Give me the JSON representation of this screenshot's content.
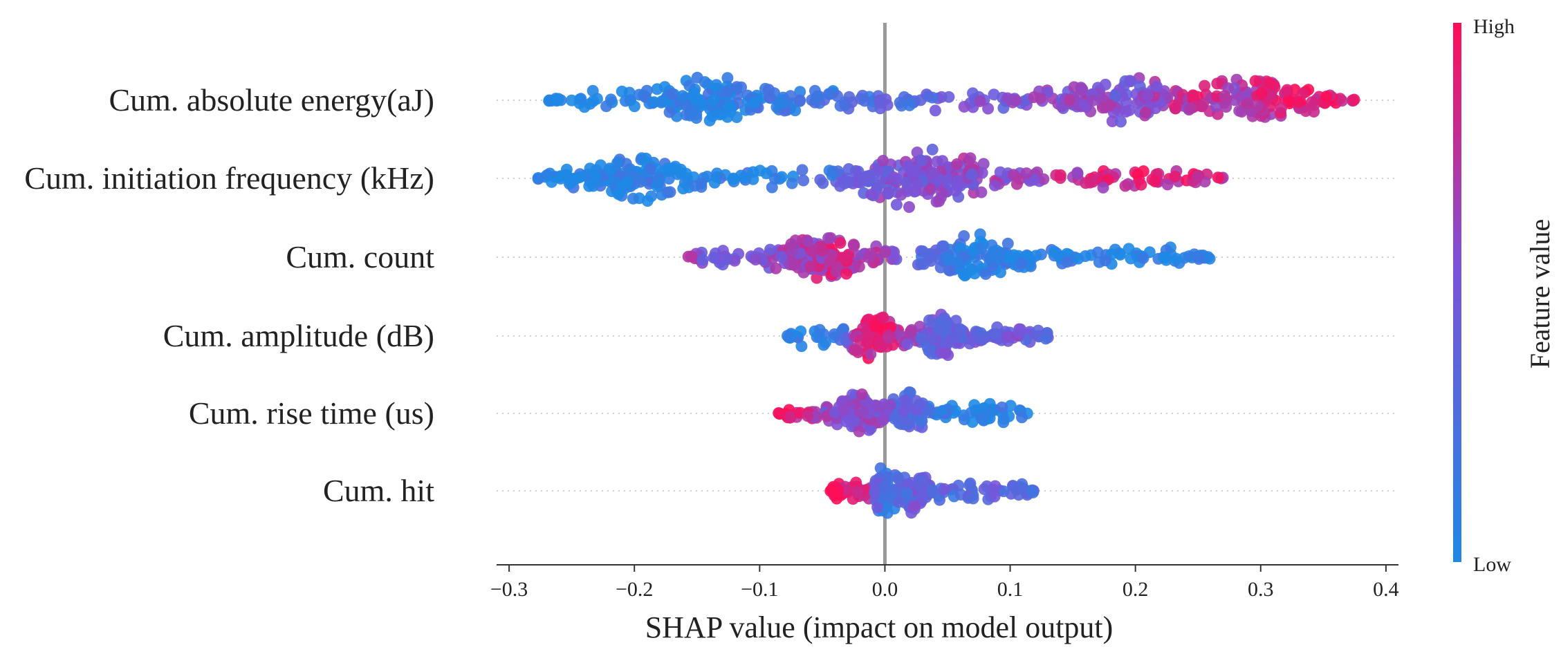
{
  "chart_data": {
    "type": "scatter",
    "subtype": "beeswarm",
    "title": "",
    "xlabel": "SHAP value (impact on model output)",
    "ylabel": "",
    "xlim": [
      -0.31,
      0.41
    ],
    "xticks": [
      -0.3,
      -0.2,
      -0.1,
      0.0,
      0.1,
      0.2,
      0.3,
      0.4
    ],
    "xtick_labels": [
      "−0.3",
      "−0.2",
      "−0.1",
      "0.0",
      "0.1",
      "0.2",
      "0.3",
      "0.4"
    ],
    "grid": false,
    "zero_line": true,
    "features": [
      {
        "name": "Cum. absolute energy(aJ)",
        "range": [
          -0.27,
          0.375
        ],
        "peaks": [
          -0.14,
          0.19,
          0.29
        ],
        "points": [
          {
            "x": -0.27,
            "v": 0.05
          },
          {
            "x": -0.24,
            "v": 0.06
          },
          {
            "x": -0.21,
            "v": 0.05
          },
          {
            "x": -0.19,
            "v": 0.06
          },
          {
            "x": -0.17,
            "v": 0.05
          },
          {
            "x": -0.155,
            "v": 0.04
          },
          {
            "x": -0.14,
            "v": 0.05
          },
          {
            "x": -0.125,
            "v": 0.06
          },
          {
            "x": -0.1,
            "v": 0.1
          },
          {
            "x": -0.07,
            "v": 0.12
          },
          {
            "x": -0.04,
            "v": 0.2
          },
          {
            "x": 0.0,
            "v": 0.3
          },
          {
            "x": 0.04,
            "v": 0.35
          },
          {
            "x": 0.08,
            "v": 0.5
          },
          {
            "x": 0.11,
            "v": 0.55
          },
          {
            "x": 0.14,
            "v": 0.55
          },
          {
            "x": 0.17,
            "v": 0.6
          },
          {
            "x": 0.19,
            "v": 0.5
          },
          {
            "x": 0.22,
            "v": 0.65
          },
          {
            "x": 0.25,
            "v": 0.8
          },
          {
            "x": 0.27,
            "v": 0.7
          },
          {
            "x": 0.29,
            "v": 0.75
          },
          {
            "x": 0.32,
            "v": 0.9
          },
          {
            "x": 0.35,
            "v": 0.95
          },
          {
            "x": 0.375,
            "v": 0.95
          }
        ]
      },
      {
        "name": "Cum. initiation frequency (kHz)",
        "range": [
          -0.28,
          0.27
        ],
        "peaks": [
          -0.2,
          0.01,
          0.05
        ],
        "points": [
          {
            "x": -0.28,
            "v": 0.04
          },
          {
            "x": -0.25,
            "v": 0.05
          },
          {
            "x": -0.22,
            "v": 0.05
          },
          {
            "x": -0.2,
            "v": 0.06
          },
          {
            "x": -0.17,
            "v": 0.05
          },
          {
            "x": -0.14,
            "v": 0.06
          },
          {
            "x": -0.1,
            "v": 0.08
          },
          {
            "x": -0.07,
            "v": 0.1
          },
          {
            "x": -0.03,
            "v": 0.35
          },
          {
            "x": -0.01,
            "v": 0.5
          },
          {
            "x": 0.01,
            "v": 0.55
          },
          {
            "x": 0.03,
            "v": 0.5
          },
          {
            "x": 0.05,
            "v": 0.6
          },
          {
            "x": 0.08,
            "v": 0.6
          },
          {
            "x": 0.11,
            "v": 0.65
          },
          {
            "x": 0.14,
            "v": 0.75
          },
          {
            "x": 0.17,
            "v": 0.8
          },
          {
            "x": 0.2,
            "v": 0.85
          },
          {
            "x": 0.23,
            "v": 0.85
          },
          {
            "x": 0.25,
            "v": 0.8
          },
          {
            "x": 0.27,
            "v": 0.85
          }
        ]
      },
      {
        "name": "Cum. count",
        "range": [
          -0.16,
          0.26
        ],
        "peaks": [
          -0.05,
          0.07
        ],
        "points": [
          {
            "x": -0.16,
            "v": 0.6
          },
          {
            "x": -0.14,
            "v": 0.55
          },
          {
            "x": -0.12,
            "v": 0.5
          },
          {
            "x": -0.1,
            "v": 0.6
          },
          {
            "x": -0.08,
            "v": 0.6
          },
          {
            "x": -0.06,
            "v": 0.7
          },
          {
            "x": -0.04,
            "v": 0.8
          },
          {
            "x": -0.02,
            "v": 0.75
          },
          {
            "x": 0.0,
            "v": 0.7
          },
          {
            "x": 0.02,
            "v": 0.4
          },
          {
            "x": 0.05,
            "v": 0.15
          },
          {
            "x": 0.07,
            "v": 0.05
          },
          {
            "x": 0.1,
            "v": 0.05
          },
          {
            "x": 0.13,
            "v": 0.06
          },
          {
            "x": 0.16,
            "v": 0.05
          },
          {
            "x": 0.19,
            "v": 0.05
          },
          {
            "x": 0.22,
            "v": 0.04
          },
          {
            "x": 0.26,
            "v": 0.04
          }
        ]
      },
      {
        "name": "Cum. amplitude (dB)",
        "range": [
          -0.08,
          0.135
        ],
        "peaks": [
          -0.01,
          0.045
        ],
        "points": [
          {
            "x": -0.08,
            "v": 0.05
          },
          {
            "x": -0.06,
            "v": 0.06
          },
          {
            "x": -0.04,
            "v": 0.1
          },
          {
            "x": -0.02,
            "v": 0.85
          },
          {
            "x": 0.0,
            "v": 0.9
          },
          {
            "x": 0.015,
            "v": 0.7
          },
          {
            "x": 0.03,
            "v": 0.45
          },
          {
            "x": 0.045,
            "v": 0.4
          },
          {
            "x": 0.06,
            "v": 0.45
          },
          {
            "x": 0.08,
            "v": 0.4
          },
          {
            "x": 0.1,
            "v": 0.5
          },
          {
            "x": 0.12,
            "v": 0.45
          },
          {
            "x": 0.135,
            "v": 0.4
          }
        ]
      },
      {
        "name": "Cum. rise time (us)",
        "range": [
          -0.085,
          0.115
        ],
        "peaks": [
          -0.02,
          0.02
        ],
        "points": [
          {
            "x": -0.085,
            "v": 0.95
          },
          {
            "x": -0.07,
            "v": 0.9
          },
          {
            "x": -0.05,
            "v": 0.6
          },
          {
            "x": -0.03,
            "v": 0.65
          },
          {
            "x": -0.01,
            "v": 0.55
          },
          {
            "x": 0.01,
            "v": 0.4
          },
          {
            "x": 0.03,
            "v": 0.3
          },
          {
            "x": 0.05,
            "v": 0.15
          },
          {
            "x": 0.07,
            "v": 0.06
          },
          {
            "x": 0.09,
            "v": 0.05
          },
          {
            "x": 0.115,
            "v": 0.05
          }
        ]
      },
      {
        "name": "Cum. hit",
        "range": [
          -0.045,
          0.12
        ],
        "peaks": [
          0.0,
          0.025
        ],
        "points": [
          {
            "x": -0.045,
            "v": 0.95
          },
          {
            "x": -0.03,
            "v": 0.9
          },
          {
            "x": -0.015,
            "v": 0.85
          },
          {
            "x": 0.0,
            "v": 0.1
          },
          {
            "x": 0.015,
            "v": 0.35
          },
          {
            "x": 0.025,
            "v": 0.45
          },
          {
            "x": 0.04,
            "v": 0.4
          },
          {
            "x": 0.06,
            "v": 0.2
          },
          {
            "x": 0.08,
            "v": 0.4
          },
          {
            "x": 0.1,
            "v": 0.35
          },
          {
            "x": 0.12,
            "v": 0.3
          }
        ]
      }
    ],
    "colorbar": {
      "label": "Feature value",
      "high_label": "High",
      "low_label": "Low",
      "low_color": "#1E88E5",
      "mid_color": "#7C52D8",
      "high_color": "#FF0D57",
      "placement": "right"
    },
    "colors": {
      "zero_line": "#999999",
      "axis": "#333333",
      "guide": "#cccccc"
    }
  }
}
